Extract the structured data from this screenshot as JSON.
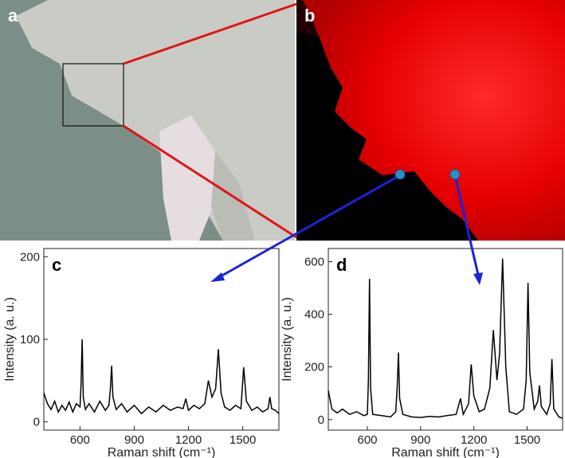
{
  "panels": {
    "a": "a",
    "b": "b"
  },
  "chart_data": [
    {
      "type": "line",
      "label": "c",
      "y_label": "Intensity (a. u.)",
      "x_label": "Raman shift (cm⁻¹)",
      "xlim": [
        400,
        1700
      ],
      "xticks": [
        600,
        900,
        1200,
        1500
      ],
      "ylim": [
        -10,
        210
      ],
      "yticks": [
        0,
        100,
        200
      ],
      "color": "#000000",
      "x": [
        400,
        420,
        440,
        460,
        480,
        500,
        520,
        540,
        560,
        580,
        600,
        606,
        612,
        618,
        630,
        650,
        680,
        710,
        740,
        760,
        768,
        775,
        782,
        800,
        830,
        860,
        900,
        940,
        980,
        1020,
        1060,
        1100,
        1140,
        1170,
        1185,
        1200,
        1230,
        1260,
        1290,
        1310,
        1330,
        1350,
        1365,
        1380,
        1400,
        1430,
        1460,
        1490,
        1505,
        1520,
        1550,
        1580,
        1610,
        1640,
        1650,
        1660,
        1680,
        1700
      ],
      "values": [
        35,
        22,
        15,
        25,
        12,
        20,
        14,
        24,
        12,
        22,
        18,
        45,
        100,
        30,
        15,
        22,
        12,
        25,
        14,
        20,
        40,
        68,
        30,
        15,
        22,
        12,
        20,
        10,
        18,
        12,
        20,
        14,
        18,
        16,
        28,
        14,
        20,
        16,
        22,
        50,
        30,
        40,
        88,
        35,
        18,
        14,
        20,
        16,
        66,
        25,
        14,
        18,
        12,
        16,
        30,
        16,
        14,
        10
      ]
    },
    {
      "type": "line",
      "label": "d",
      "y_label": "Intensity (a. u.)",
      "x_label": "Raman shift (cm⁻¹)",
      "xlim": [
        380,
        1700
      ],
      "xticks": [
        600,
        900,
        1200,
        1500
      ],
      "ylim": [
        -40,
        650
      ],
      "yticks": [
        0,
        200,
        400,
        600
      ],
      "color": "#000000",
      "x": [
        380,
        400,
        430,
        460,
        500,
        540,
        580,
        600,
        606,
        612,
        618,
        630,
        680,
        730,
        760,
        768,
        775,
        782,
        800,
        850,
        900,
        950,
        1000,
        1050,
        1100,
        1125,
        1140,
        1170,
        1185,
        1200,
        1230,
        1260,
        1290,
        1310,
        1330,
        1345,
        1362,
        1380,
        1400,
        1440,
        1480,
        1495,
        1505,
        1515,
        1540,
        1560,
        1570,
        1580,
        1610,
        1630,
        1640,
        1650,
        1680,
        1700
      ],
      "values": [
        110,
        40,
        25,
        40,
        20,
        30,
        15,
        20,
        150,
        535,
        120,
        20,
        15,
        10,
        30,
        120,
        255,
        80,
        20,
        10,
        8,
        12,
        10,
        15,
        20,
        80,
        20,
        60,
        210,
        90,
        30,
        40,
        120,
        340,
        150,
        250,
        612,
        200,
        30,
        20,
        40,
        150,
        520,
        180,
        40,
        70,
        130,
        50,
        20,
        60,
        230,
        40,
        10,
        5
      ]
    }
  ]
}
